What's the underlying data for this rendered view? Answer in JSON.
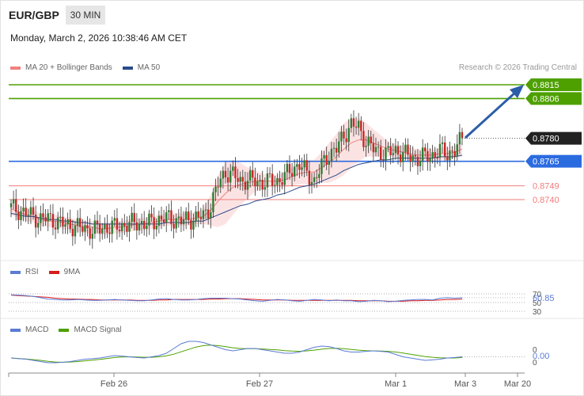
{
  "header": {
    "pair": "EUR/GBP",
    "timeframe": "30 MIN",
    "datetime": "Monday, March 2, 2026 10:38:46 AM CET",
    "credit": "Research © 2026 Trading Central"
  },
  "colors": {
    "up": "#2e7d32",
    "down": "#c62828",
    "ma20": "#f08080",
    "ma50": "#2b4a8b",
    "band": "#fbd9d9",
    "resistance": "#4ea000",
    "pivot": "#2b6be0",
    "support": "#f27b7b",
    "last": "#222222",
    "rsi": "#5b7bd5",
    "rsi_ma": "#d81b1b",
    "macd": "#5b7bd5",
    "macd_signal": "#4ea000"
  },
  "legends": {
    "main": [
      {
        "label": "MA 20 + Bollinger Bands",
        "color": "#f08080"
      },
      {
        "label": "MA 50",
        "color": "#2b4a8b"
      }
    ],
    "rsi": [
      {
        "label": "RSI",
        "color": "#5b7bd5"
      },
      {
        "label": "9MA",
        "color": "#d81b1b"
      }
    ],
    "macd": [
      {
        "label": "MACD",
        "color": "#5b7bd5"
      },
      {
        "label": "MACD Signal",
        "color": "#4ea000"
      }
    ]
  },
  "chart_data": [
    {
      "type": "candlestick",
      "ylim": [
        0.87,
        0.883
      ],
      "x_tick_labels": [
        "Feb 26",
        "Feb 27",
        "Mar 1",
        "Mar 3",
        "Mar 20"
      ],
      "price_levels": [
        {
          "value": 0.8815,
          "label": "0.8815",
          "role": "resistance"
        },
        {
          "value": 0.8806,
          "label": "0.8806",
          "role": "resistance"
        },
        {
          "value": 0.878,
          "label": "0.8780",
          "role": "last"
        },
        {
          "value": 0.8765,
          "label": "0.8765",
          "role": "pivot"
        },
        {
          "value": 0.8749,
          "label": "0.8749",
          "role": "support"
        },
        {
          "value": 0.874,
          "label": "0.8740",
          "role": "support"
        }
      ],
      "close_path": [
        0.8735,
        0.8733,
        0.8731,
        0.8729,
        0.8727,
        0.8728,
        0.8726,
        0.8724,
        0.8723,
        0.8722,
        0.8721,
        0.872,
        0.8721,
        0.8722,
        0.8722,
        0.8723,
        0.8724,
        0.8725,
        0.8724,
        0.8725,
        0.8727,
        0.8728,
        0.8727,
        0.8726,
        0.8727,
        0.8728,
        0.8729,
        0.8736,
        0.875,
        0.8758,
        0.8756,
        0.8752,
        0.8753,
        0.8752,
        0.8751,
        0.8752,
        0.8752,
        0.8755,
        0.876,
        0.8763,
        0.8757,
        0.8752,
        0.8762,
        0.877,
        0.8773,
        0.8782,
        0.8789,
        0.8787,
        0.8778,
        0.8773,
        0.8771,
        0.877,
        0.8772,
        0.877,
        0.8768,
        0.8767,
        0.8768,
        0.8769,
        0.8772,
        0.877,
        0.8772,
        0.878
      ],
      "ma20_path": [
        0.8734,
        0.8732,
        0.873,
        0.8729,
        0.8727,
        0.8726,
        0.8726,
        0.8725,
        0.8724,
        0.8723,
        0.8722,
        0.8722,
        0.8721,
        0.8721,
        0.8722,
        0.8722,
        0.8723,
        0.8724,
        0.8724,
        0.8725,
        0.8726,
        0.8727,
        0.8727,
        0.8727,
        0.8727,
        0.8728,
        0.8729,
        0.8733,
        0.8739,
        0.8744,
        0.8748,
        0.875,
        0.8751,
        0.8752,
        0.8752,
        0.8752,
        0.8752,
        0.8753,
        0.8755,
        0.8757,
        0.8758,
        0.8758,
        0.8761,
        0.8764,
        0.8768,
        0.8773,
        0.8777,
        0.8779,
        0.8779,
        0.8777,
        0.8775,
        0.8773,
        0.8772,
        0.8771,
        0.877,
        0.8769,
        0.8769,
        0.8769,
        0.877,
        0.877,
        0.8771,
        0.8773
      ],
      "ma50_path": [
        0.8731,
        0.873,
        0.8729,
        0.8729,
        0.8728,
        0.8727,
        0.8727,
        0.8726,
        0.8726,
        0.8725,
        0.8725,
        0.8724,
        0.8724,
        0.8724,
        0.8724,
        0.8724,
        0.8724,
        0.8724,
        0.8724,
        0.8724,
        0.8724,
        0.8725,
        0.8725,
        0.8725,
        0.8725,
        0.8726,
        0.8726,
        0.8728,
        0.873,
        0.8732,
        0.8734,
        0.8736,
        0.8737,
        0.8739,
        0.874,
        0.8741,
        0.8743,
        0.8744,
        0.8746,
        0.8748,
        0.8749,
        0.875,
        0.8752,
        0.8754,
        0.8756,
        0.8759,
        0.8761,
        0.8763,
        0.8764,
        0.8765,
        0.8766,
        0.8766,
        0.8767,
        0.8767,
        0.8767,
        0.8767,
        0.8767,
        0.8767,
        0.8768,
        0.8768,
        0.8768,
        0.8769
      ],
      "bb_width": [
        0.0004,
        0.0004,
        0.0004,
        0.0004,
        0.0004,
        0.0004,
        0.0004,
        0.0004,
        0.0004,
        0.0004,
        0.0004,
        0.0004,
        0.0004,
        0.0004,
        0.0004,
        0.0004,
        0.0004,
        0.0004,
        0.0004,
        0.0004,
        0.0004,
        0.0004,
        0.0004,
        0.0004,
        0.0004,
        0.0004,
        0.0005,
        0.001,
        0.0017,
        0.002,
        0.0018,
        0.0014,
        0.001,
        0.0007,
        0.0005,
        0.0004,
        0.0004,
        0.0005,
        0.0006,
        0.0007,
        0.0008,
        0.0008,
        0.001,
        0.0013,
        0.0015,
        0.0017,
        0.0016,
        0.0014,
        0.0011,
        0.0009,
        0.0007,
        0.0005,
        0.0004,
        0.0004,
        0.0004,
        0.0004,
        0.0004,
        0.0004,
        0.0004,
        0.0004,
        0.0004,
        0.0005
      ]
    },
    {
      "type": "line",
      "name": "RSI",
      "y_tick_labels": [
        "70",
        "50",
        "30"
      ],
      "value_label": "60.85",
      "rsi_path": [
        68,
        67,
        66,
        64,
        61,
        58,
        57,
        56,
        56,
        57,
        56,
        55,
        55,
        56,
        57,
        56,
        55,
        54,
        54,
        56,
        58,
        59,
        57,
        56,
        56,
        57,
        59,
        60,
        60,
        60,
        59,
        58,
        56,
        54,
        53,
        55,
        57,
        56,
        54,
        53,
        55,
        57,
        56,
        54,
        56,
        54,
        54,
        52,
        53,
        55,
        54,
        52,
        53,
        55,
        56,
        57,
        57,
        56,
        60,
        61,
        60,
        61
      ],
      "ma9_path": [
        67,
        66,
        65,
        64,
        63,
        62,
        60,
        59,
        58,
        58,
        57,
        57,
        56,
        56,
        56,
        56,
        56,
        55,
        55,
        55,
        56,
        56,
        57,
        57,
        57,
        57,
        57,
        58,
        58,
        59,
        59,
        59,
        58,
        57,
        56,
        56,
        56,
        56,
        55,
        55,
        55,
        55,
        55,
        55,
        55,
        55,
        55,
        54,
        54,
        54,
        54,
        53,
        53,
        53,
        54,
        54,
        55,
        55,
        56,
        57,
        57,
        58
      ]
    },
    {
      "type": "line",
      "name": "MACD",
      "y_tick_labels": [
        "0",
        "0"
      ],
      "value_label": "0.00",
      "macd_path": [
        0,
        -0.3,
        -0.5,
        -1,
        -1.5,
        -2,
        -2,
        -1.8,
        -1.5,
        -1,
        -0.5,
        -0.3,
        0,
        0.5,
        1,
        0.8,
        0.5,
        0.2,
        0,
        0.5,
        1,
        2,
        4,
        6,
        7,
        7,
        6.5,
        5.5,
        4.5,
        3.5,
        3,
        3.5,
        4,
        4,
        3.5,
        3,
        2.5,
        2,
        2,
        2.5,
        3.5,
        4.5,
        5,
        4.8,
        4,
        3,
        2.5,
        2.5,
        2.8,
        3,
        2.8,
        2.5,
        1.5,
        0.5,
        0,
        -0.5,
        -1,
        -0.8,
        -0.5,
        0,
        0.2,
        0.5
      ],
      "signal_path": [
        0,
        -0.2,
        -0.4,
        -0.7,
        -1,
        -1.4,
        -1.7,
        -1.8,
        -1.7,
        -1.5,
        -1.2,
        -0.9,
        -0.6,
        -0.2,
        0.2,
        0.4,
        0.5,
        0.4,
        0.3,
        0.3,
        0.5,
        0.9,
        1.6,
        2.6,
        3.6,
        4.6,
        5.2,
        5.4,
        5.2,
        4.8,
        4.3,
        4,
        3.9,
        3.9,
        3.8,
        3.6,
        3.4,
        3.1,
        2.9,
        2.8,
        3,
        3.3,
        3.7,
        4,
        4.1,
        3.9,
        3.6,
        3.3,
        3.1,
        3,
        2.9,
        2.8,
        2.5,
        2.1,
        1.6,
        1.1,
        0.6,
        0.3,
        0.1,
        0,
        0,
        0.2
      ]
    }
  ]
}
